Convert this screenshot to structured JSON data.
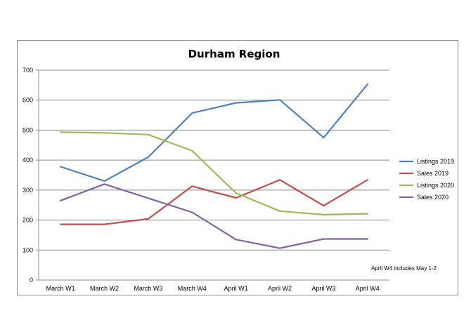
{
  "chart_data": {
    "type": "line",
    "title": "Durham Region",
    "xlabel": "",
    "ylabel": "",
    "categories": [
      "March W1",
      "March W2",
      "March W3",
      "March W4",
      "April W1",
      "April W2",
      "April W3",
      "April W4"
    ],
    "ylim": [
      0,
      700
    ],
    "yticks": [
      0,
      100,
      200,
      300,
      400,
      500,
      600,
      700
    ],
    "grid": true,
    "legend_position": "right",
    "series": [
      {
        "name": "Listings 2019",
        "color": "#4f81bd",
        "values": [
          378,
          330,
          410,
          557,
          591,
          601,
          475,
          653
        ]
      },
      {
        "name": "Sales 2019",
        "color": "#c0504d",
        "values": [
          186,
          186,
          204,
          313,
          274,
          334,
          248,
          334
        ]
      },
      {
        "name": "Listings 2020",
        "color": "#9bbb59",
        "values": [
          493,
          491,
          485,
          431,
          290,
          230,
          218,
          221
        ]
      },
      {
        "name": "Sales 2020",
        "color": "#8064a2",
        "values": [
          265,
          320,
          273,
          226,
          135,
          106,
          137,
          137
        ]
      }
    ],
    "annotation": "April W4 includes May 1-2"
  }
}
